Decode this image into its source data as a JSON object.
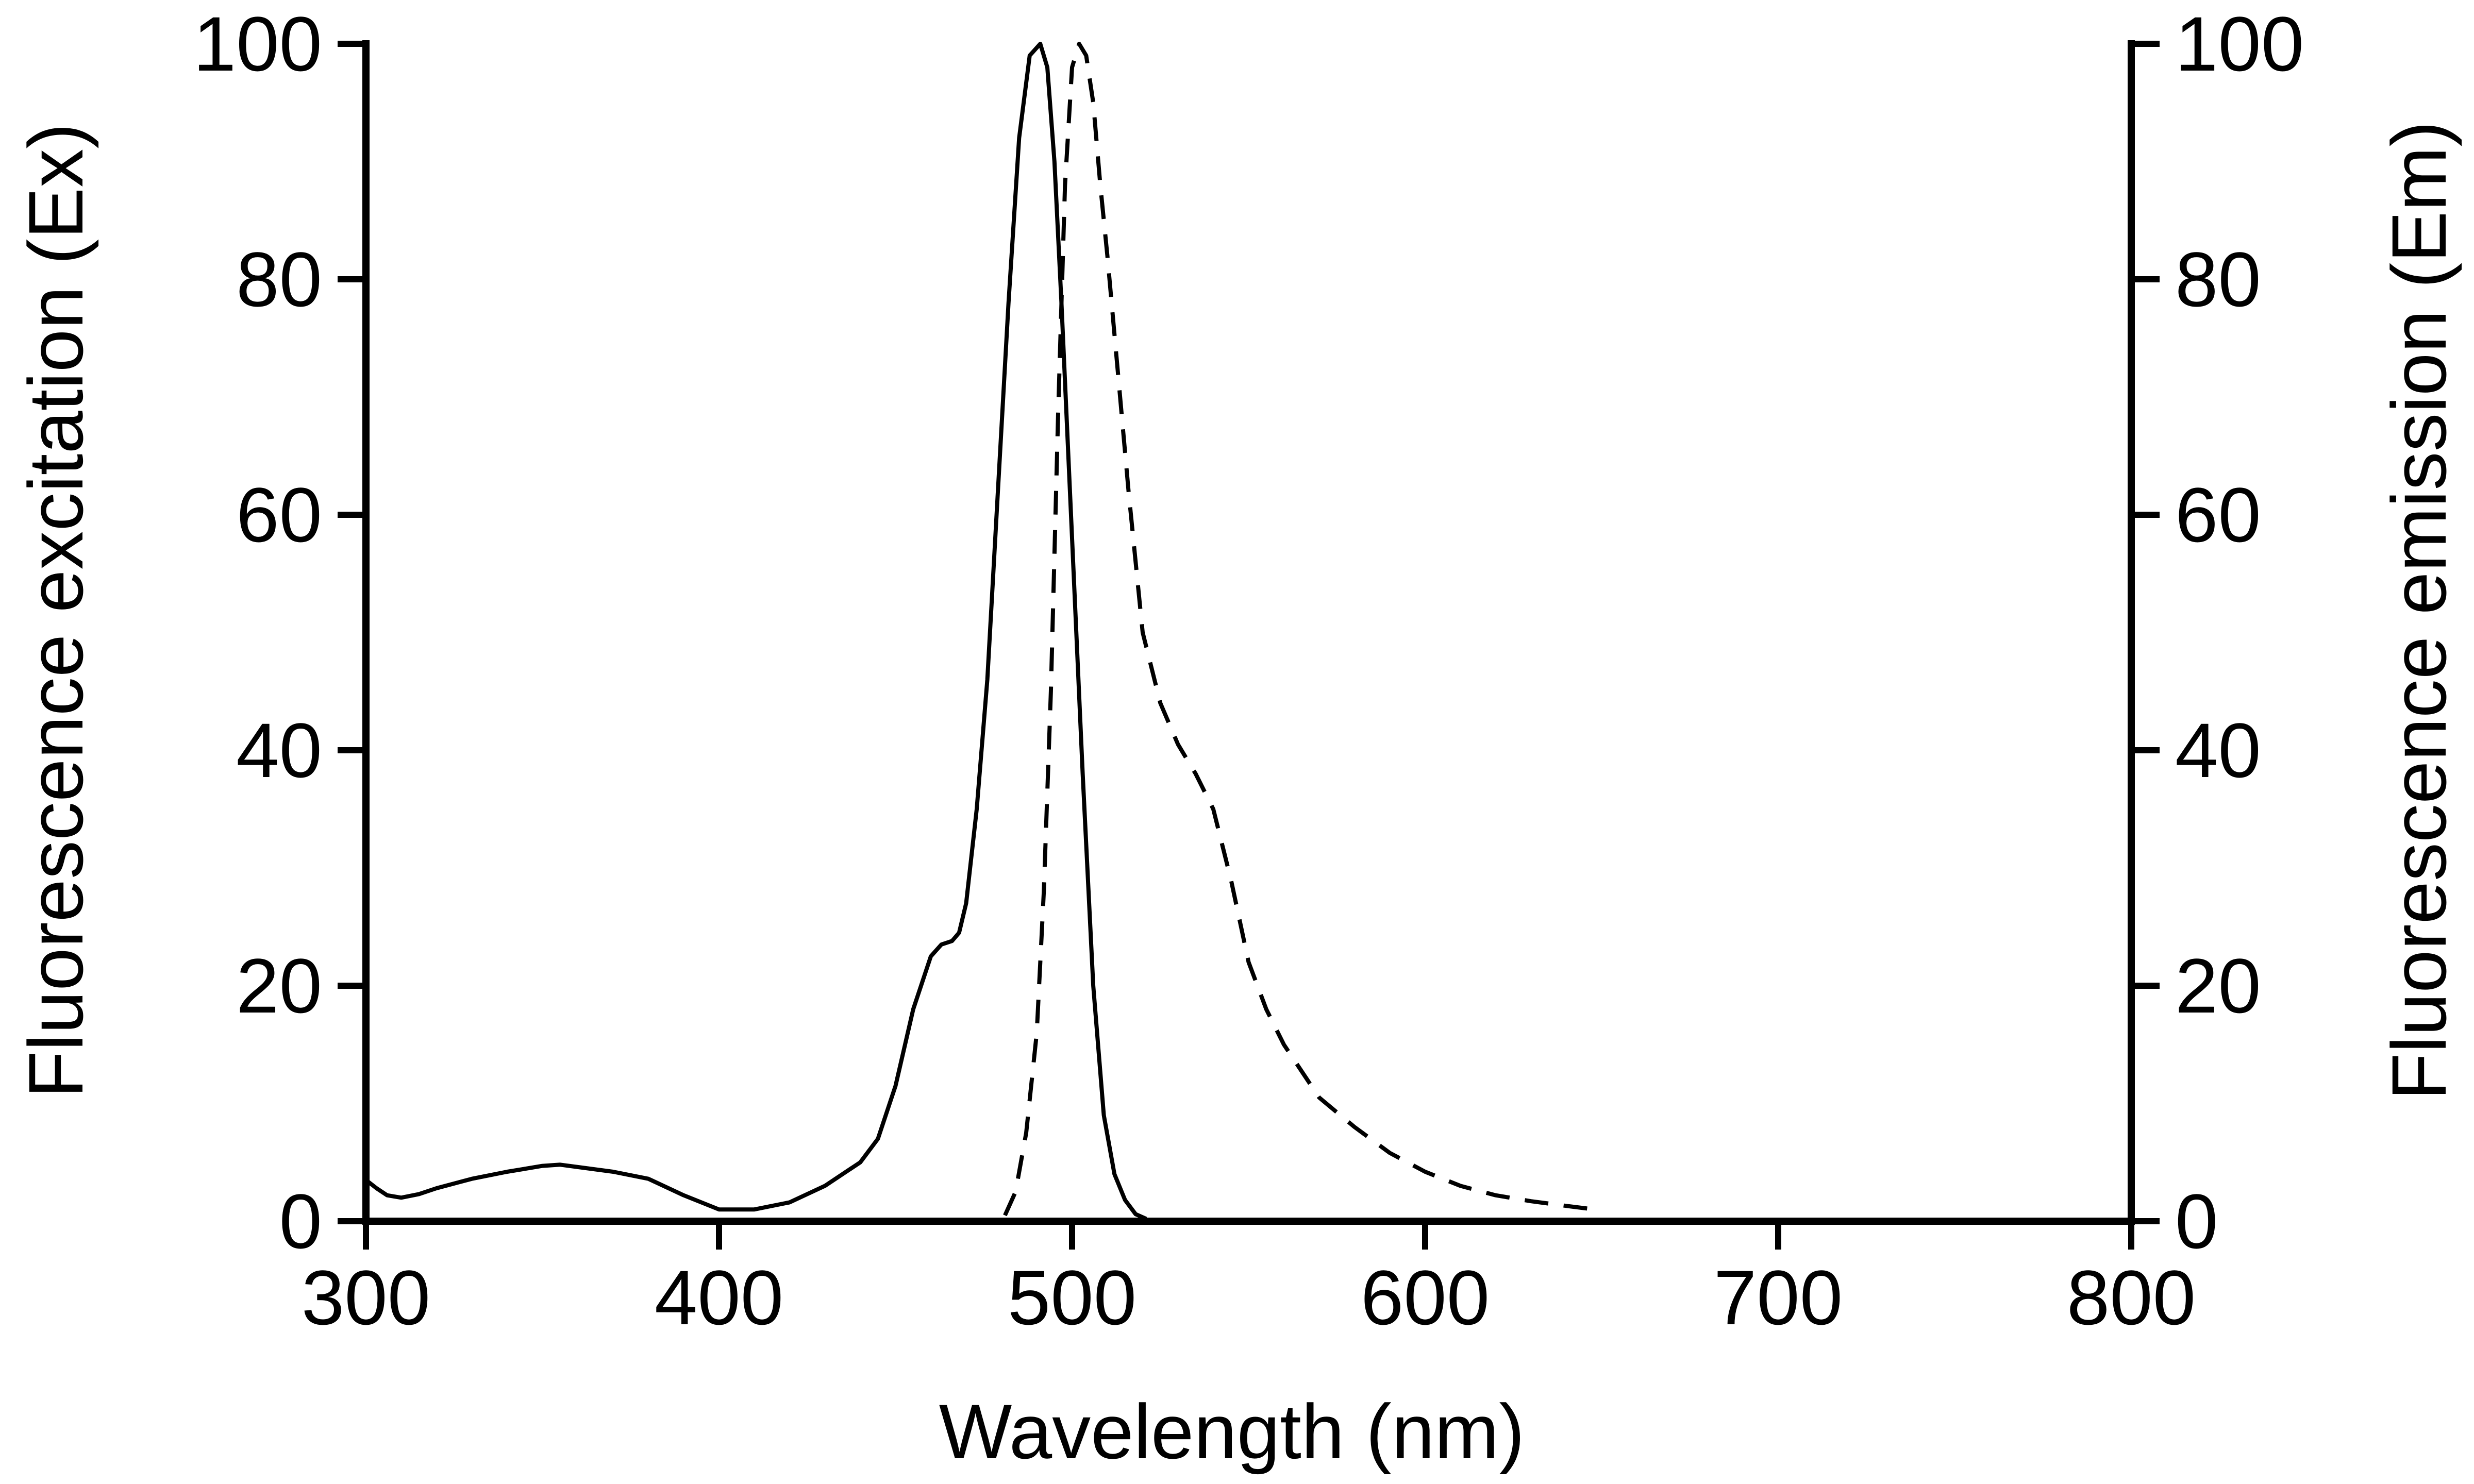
{
  "chart_data": {
    "type": "line",
    "xlabel": "Wavelength (nm)",
    "ylabel": "Fluorescence excitation (Ex)",
    "y2label": "Fluorescence emission (Em)",
    "xlim": [
      300,
      800
    ],
    "ylim": [
      0,
      100
    ],
    "y2lim": [
      0,
      100
    ],
    "x_ticks": [
      300,
      400,
      500,
      600,
      700,
      800
    ],
    "y_ticks": [
      0,
      20,
      40,
      60,
      80,
      100
    ],
    "y2_ticks": [
      0,
      20,
      40,
      60,
      80,
      100
    ],
    "grid": false,
    "series": [
      {
        "line_style": "solid",
        "axis": "left",
        "x": [
          300,
          303,
          306,
          310,
          315,
          320,
          330,
          340,
          350,
          355,
          360,
          370,
          380,
          390,
          400,
          410,
          420,
          430,
          440,
          445,
          450,
          455,
          460,
          463,
          466,
          468,
          470,
          473,
          476,
          479,
          482,
          485,
          488,
          491,
          493,
          495,
          497,
          500,
          503,
          506,
          509,
          512,
          515,
          518,
          521
        ],
        "y": [
          3.5,
          2.8,
          2.2,
          2.0,
          2.3,
          2.8,
          3.6,
          4.2,
          4.7,
          4.8,
          4.6,
          4.2,
          3.6,
          2.2,
          1.0,
          1.0,
          1.6,
          3.0,
          5.0,
          7.0,
          11.5,
          18.0,
          22.5,
          23.5,
          23.8,
          24.5,
          27.0,
          35.0,
          46.0,
          62.0,
          78.0,
          92.0,
          99.0,
          100,
          98.0,
          90.0,
          78.0,
          58.0,
          38.0,
          20.0,
          9.0,
          4.0,
          1.8,
          0.6,
          0.2
        ]
      },
      {
        "line_style": "dashed",
        "axis": "right",
        "x": [
          481,
          484,
          487,
          490,
          492,
          494,
          496,
          498,
          500,
          502,
          504,
          506,
          508,
          510,
          513,
          516,
          520,
          525,
          530,
          535,
          540,
          545,
          550,
          555,
          560,
          570,
          580,
          590,
          600,
          610,
          620,
          630,
          640,
          648
        ],
        "y": [
          0.5,
          2.5,
          7.5,
          16.0,
          28.0,
          45.0,
          68.0,
          88.0,
          98.0,
          100,
          99.0,
          95.0,
          88.0,
          82.0,
          72.0,
          62.0,
          50.0,
          44.0,
          40.5,
          38.0,
          35.0,
          29.0,
          22.0,
          18.0,
          15.0,
          10.5,
          8.0,
          5.8,
          4.2,
          3.0,
          2.2,
          1.7,
          1.3,
          1.0
        ]
      }
    ]
  }
}
